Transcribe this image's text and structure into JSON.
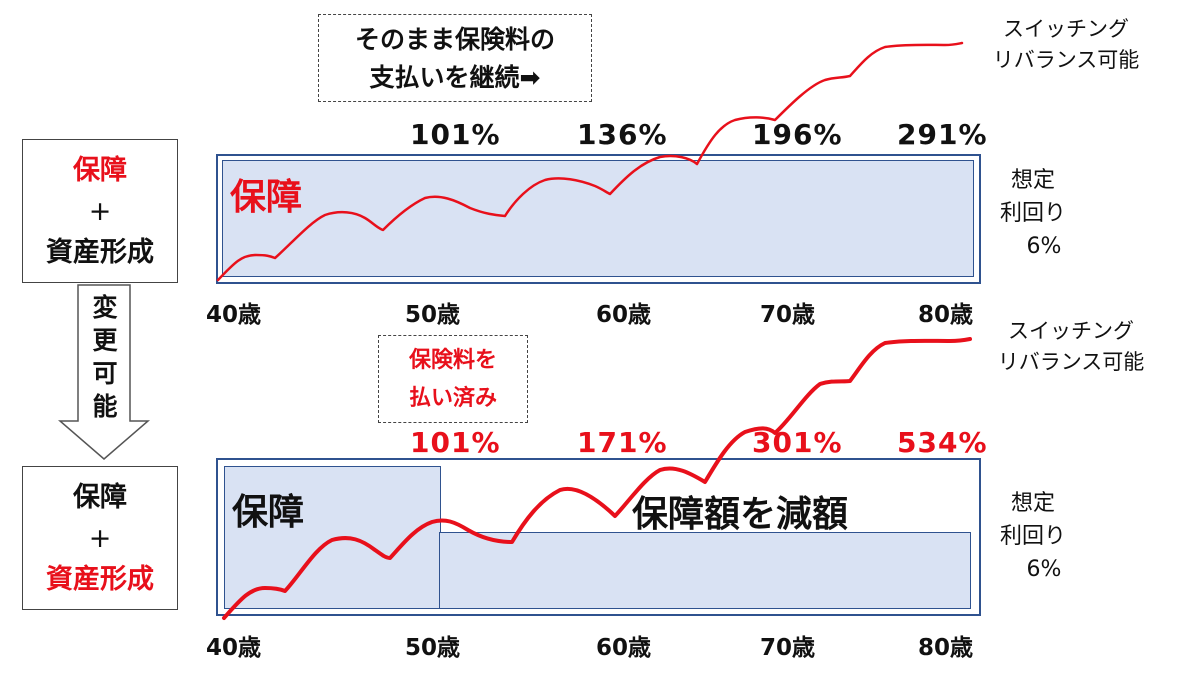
{
  "top": {
    "left_label": {
      "line1": "保障",
      "plus": "+",
      "line3": "資産形成"
    },
    "note": {
      "line1": "そのまま保険料の",
      "line2": "支払いを継続➡"
    },
    "percentages": [
      "101%",
      "136%",
      "196%",
      "291%"
    ],
    "panel_label": "保障",
    "ages": [
      "40歳",
      "50歳",
      "60歳",
      "70歳",
      "80歳"
    ],
    "side": {
      "line1": "想定",
      "line2": "利回り",
      "line3": "6%"
    },
    "switch": {
      "line1": "スイッチング",
      "line2": "リバランス可能"
    }
  },
  "middle": {
    "change_label": [
      "変",
      "更",
      "可",
      "能"
    ]
  },
  "bottom": {
    "left_label": {
      "line1": "保障",
      "plus": "+",
      "line3": "資産形成"
    },
    "note": {
      "line1": "保険料を",
      "line2": "払い済み"
    },
    "percentages": [
      "101%",
      "171%",
      "301%",
      "534%"
    ],
    "panel_label": "保障",
    "reduce_label": "保障額を減額",
    "ages": [
      "40歳",
      "50歳",
      "60歳",
      "70歳",
      "80歳"
    ],
    "side": {
      "line1": "想定",
      "line2": "利回り",
      "line3": "6%"
    },
    "switch": {
      "line1": "スイッチング",
      "line2": "リバランス可能"
    }
  },
  "colors": {
    "accent_red": "#e8101b",
    "panel_fill": "#d9e2f3",
    "panel_border": "#2f528f"
  }
}
